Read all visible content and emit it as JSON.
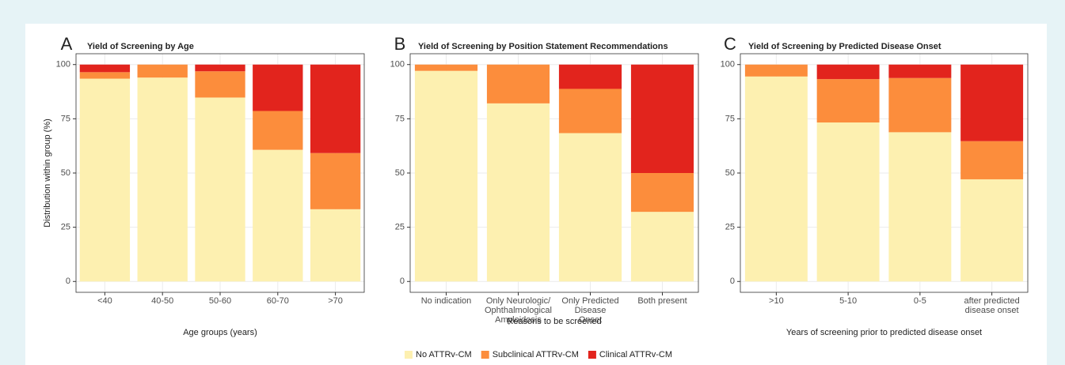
{
  "chart_data": [
    {
      "type": "stacked_bar",
      "panel_label": "A",
      "title": "Yield of Screening by Age",
      "xlabel": "Age groups (years)",
      "ylabel": "Distribution within group (%)",
      "categories": [
        "<40",
        "40-50",
        "50-60",
        "60-70",
        ">70"
      ],
      "series": [
        {
          "name": "No ATTRv-CM",
          "color": "#fdf0b0",
          "values": [
            93.5,
            94,
            84.8,
            60.7,
            33.3
          ]
        },
        {
          "name": "Subclinical ATTRv-CM",
          "color": "#fc8d3c",
          "values": [
            3,
            6,
            12.1,
            17.9,
            25.9
          ]
        },
        {
          "name": "Clinical ATTRv-CM",
          "color": "#e2241d",
          "values": [
            3.5,
            0,
            3.1,
            21.4,
            40.8
          ]
        }
      ],
      "ylim": [
        -5,
        105
      ],
      "yticks": [
        0,
        25,
        50,
        75,
        100
      ],
      "grid": true
    },
    {
      "type": "stacked_bar",
      "panel_label": "B",
      "title": "Yield of Screening by Position Statement Recommendations",
      "xlabel": "Reasons to be screened",
      "categories": [
        "No indication",
        "Only Neurologic/\nOphthalmological\nAmyloidosis",
        "Only Predicted\nDisease\nOnset",
        "Both present"
      ],
      "series": [
        {
          "name": "No ATTRv-CM",
          "color": "#fdf0b0",
          "values": [
            97.1,
            82.1,
            68.4,
            32.1
          ]
        },
        {
          "name": "Subclinical ATTRv-CM",
          "color": "#fc8d3c",
          "values": [
            2.9,
            17.9,
            20.4,
            17.9
          ]
        },
        {
          "name": "Clinical ATTRv-CM",
          "color": "#e2241d",
          "values": [
            0,
            0,
            11.2,
            50
          ]
        }
      ],
      "ylim": [
        -5,
        105
      ],
      "yticks": [
        0,
        25,
        50,
        75,
        100
      ],
      "grid": true
    },
    {
      "type": "stacked_bar",
      "panel_label": "C",
      "title": "Yield of Screening by Predicted Disease Onset",
      "xlabel": "Years of screening prior to predicted disease onset",
      "categories": [
        ">10",
        "5-10",
        "0-5",
        "after predicted\ndisease onset"
      ],
      "series": [
        {
          "name": "No ATTRv-CM",
          "color": "#fdf0b0",
          "values": [
            94.5,
            73.3,
            68.8,
            47.1
          ]
        },
        {
          "name": "Subclinical ATTRv-CM",
          "color": "#fc8d3c",
          "values": [
            5.5,
            20,
            25,
            17.6
          ]
        },
        {
          "name": "Clinical ATTRv-CM",
          "color": "#e2241d",
          "values": [
            0,
            6.7,
            6.2,
            35.3
          ]
        }
      ],
      "ylim": [
        -5,
        105
      ],
      "yticks": [
        0,
        25,
        50,
        75,
        100
      ],
      "grid": true
    }
  ]
}
